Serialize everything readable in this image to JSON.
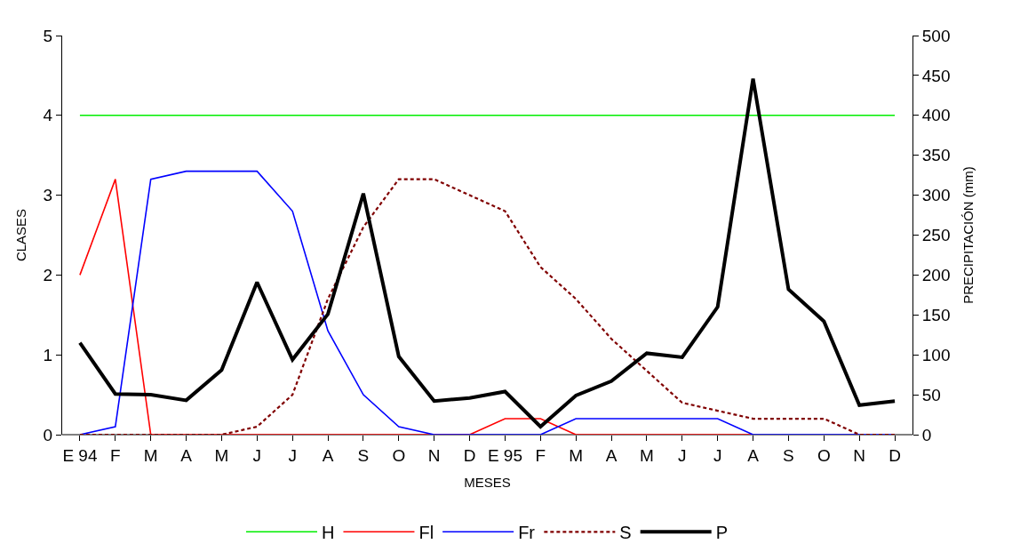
{
  "chart_data": {
    "type": "line",
    "xlabel": "MESES",
    "ylabel": "CLASES",
    "y2label": "PRECIPITACIÓN (mm)",
    "categories": [
      "E 94",
      "F",
      "M",
      "A",
      "M",
      "J",
      "J",
      "A",
      "S",
      "O",
      "N",
      "D",
      "E 95",
      "F",
      "M",
      "A",
      "M",
      "J",
      "J",
      "A",
      "S",
      "O",
      "N",
      "D"
    ],
    "series": [
      {
        "name": "H",
        "color": "#00ee00",
        "line_style": "solid",
        "values": [
          4,
          4,
          4,
          4,
          4,
          4,
          4,
          4,
          4,
          4,
          4,
          4,
          4,
          4,
          4,
          4,
          4,
          4,
          4,
          4,
          4,
          4,
          4,
          4
        ]
      },
      {
        "name": "Fl",
        "color": "#ff0000",
        "line_style": "solid",
        "values": [
          2,
          3.2,
          0,
          0,
          0,
          0,
          0,
          0,
          0,
          0,
          0,
          0,
          0.2,
          0.2,
          0,
          0,
          0,
          0,
          0,
          0,
          null,
          null,
          null,
          null
        ]
      },
      {
        "name": "Fr",
        "color": "#0000ff",
        "line_style": "solid",
        "values": [
          0,
          0.1,
          3.2,
          3.3,
          3.3,
          3.3,
          2.8,
          1.3,
          0.5,
          0.1,
          0,
          0,
          0,
          0,
          0.2,
          0.2,
          0.2,
          0.2,
          0.2,
          0,
          0,
          0,
          0,
          0
        ]
      },
      {
        "name": "S",
        "color": "#800000",
        "line_style": "dotted",
        "values": [
          0,
          0,
          0,
          0,
          0,
          0.1,
          0.5,
          1.7,
          2.6,
          3.2,
          3.2,
          3.0,
          2.8,
          2.1,
          1.7,
          1.2,
          0.8,
          0.4,
          0.3,
          0.2,
          0.2,
          0.2,
          0,
          0
        ]
      },
      {
        "name": "P",
        "color": "#000000",
        "line_style": "solid",
        "axis": "y2",
        "values": [
          115,
          51,
          50,
          43,
          81,
          191,
          94,
          151,
          302,
          98,
          42,
          46,
          54,
          10,
          49,
          67,
          102,
          97,
          160,
          446,
          182,
          142,
          37,
          42
        ]
      }
    ],
    "ylim": [
      0,
      5
    ],
    "yticks": [
      0,
      1,
      2,
      3,
      4,
      5
    ],
    "y2lim": [
      0,
      500
    ],
    "y2ticks": [
      0,
      50,
      100,
      150,
      200,
      250,
      300,
      350,
      400,
      450,
      500
    ],
    "legend": "bottom",
    "marker": "none"
  }
}
